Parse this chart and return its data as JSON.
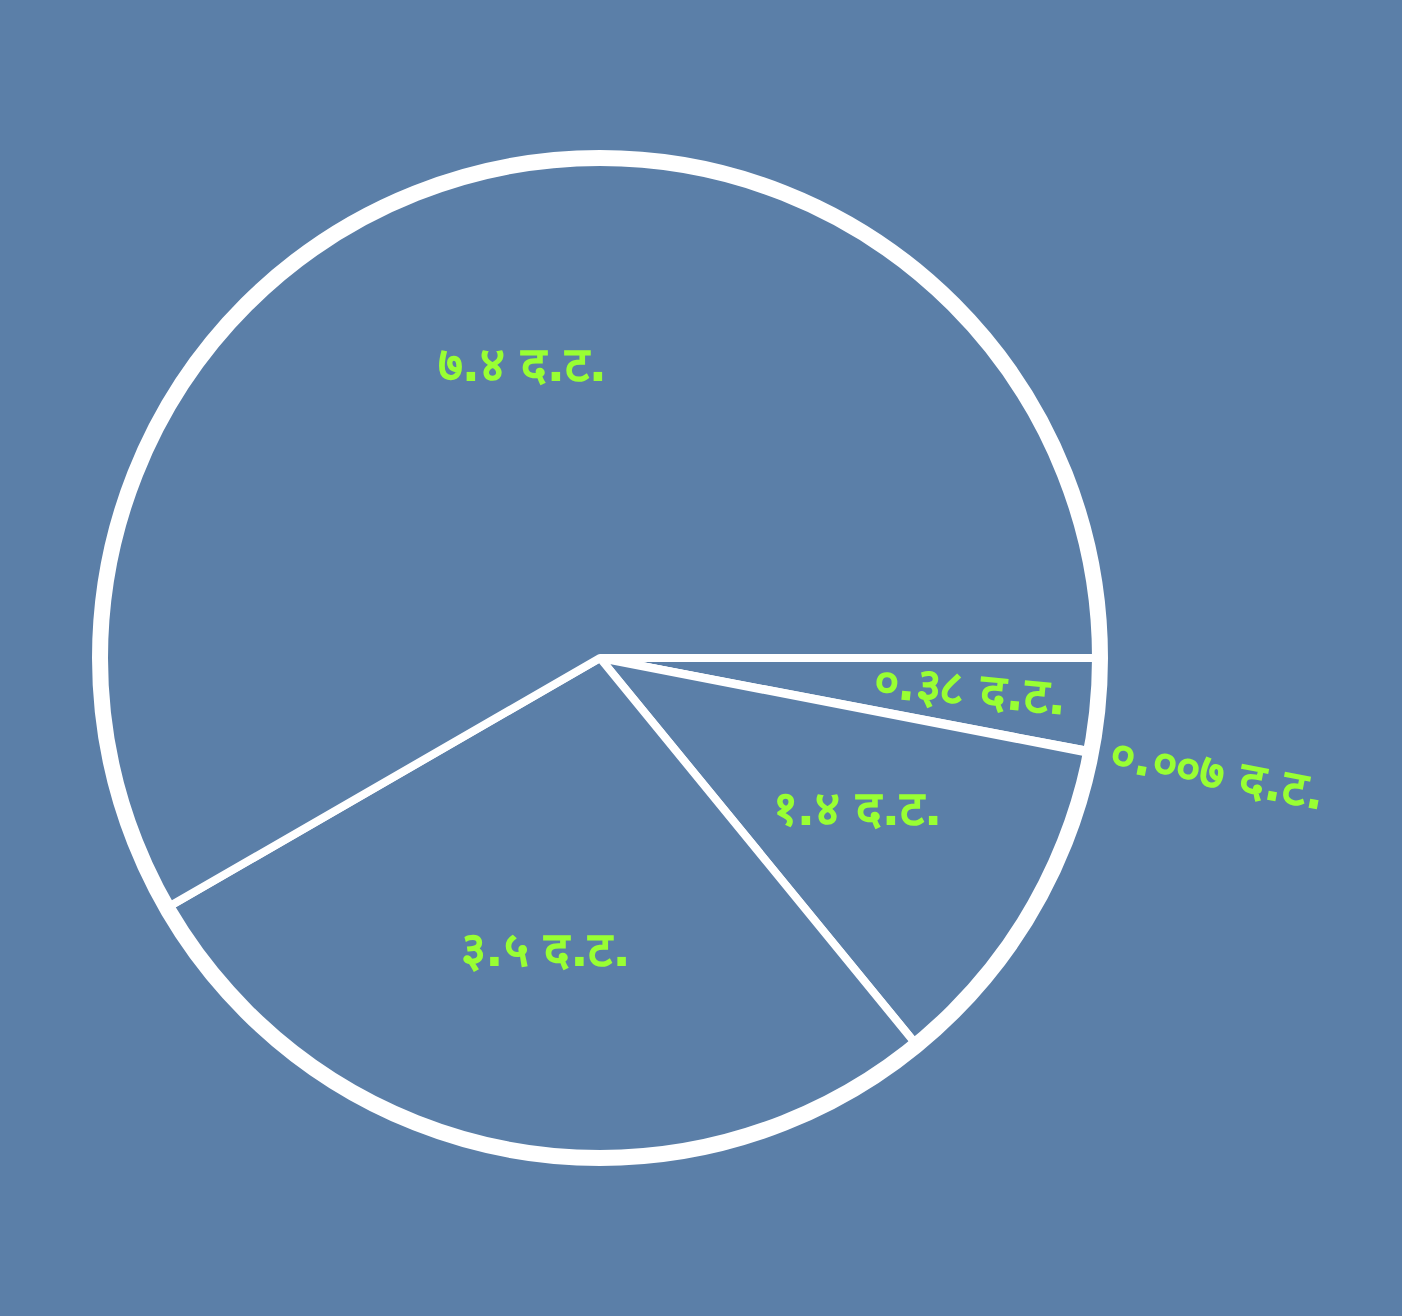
{
  "chart_data": {
    "type": "pie",
    "categories": [
      null,
      null,
      null,
      null,
      null
    ],
    "values": [
      0.38,
      0.007,
      1.4,
      3.5,
      7.4
    ],
    "value_labels": [
      "०.३८ द.ट.",
      "०.००७ द.ट.",
      "१.४ द.ट.",
      "३.५ द.ट.",
      "७.४ द.ट."
    ],
    "colors": [
      "#5b7fa8",
      "#5b7fa8",
      "#5b7fa8",
      "#5b7fa8",
      "#5b7fa8"
    ]
  }
}
